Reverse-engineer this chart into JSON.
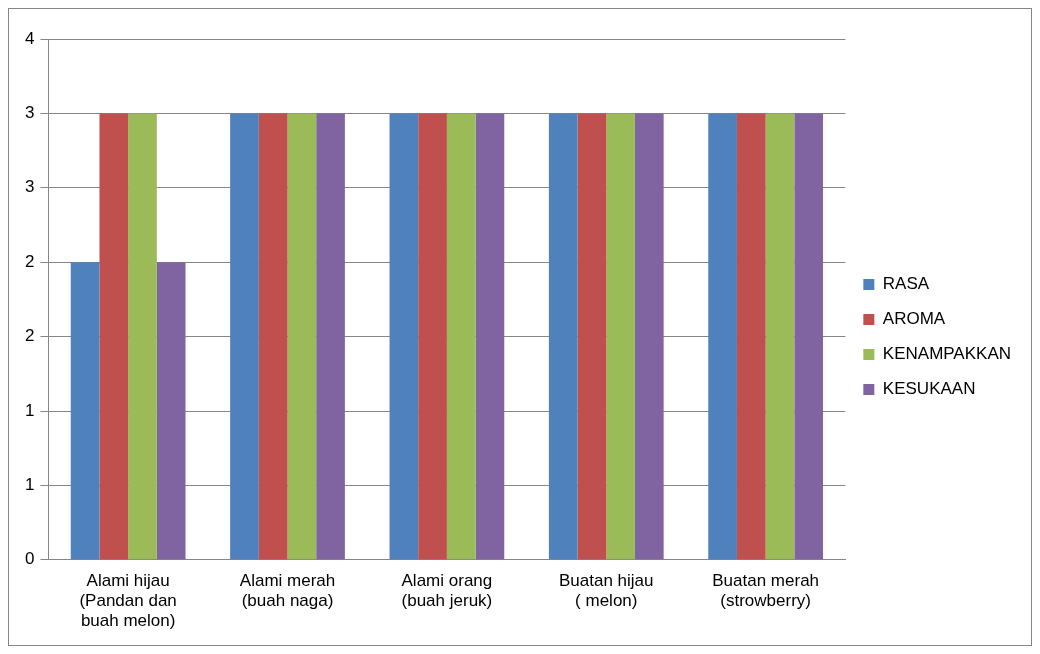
{
  "chart_data": {
    "type": "bar",
    "categories": [
      "Alami hijau (Pandan dan buah melon)",
      "Alami merah (buah naga)",
      "Alami orang (buah jeruk)",
      "Buatan hijau ( melon)",
      "Buatan merah (strowberry)"
    ],
    "series": [
      {
        "name": "RASA",
        "color": "#4f81bd",
        "values": [
          2,
          3,
          3,
          3,
          3
        ]
      },
      {
        "name": "AROMA",
        "color": "#c0504d",
        "values": [
          3,
          3,
          3,
          3,
          3
        ]
      },
      {
        "name": "KENAMPAKKAN",
        "color": "#9bbb59",
        "values": [
          3,
          3,
          3,
          3,
          3
        ]
      },
      {
        "name": "KESUKAAN",
        "color": "#8064a2",
        "values": [
          2,
          3,
          3,
          3,
          3
        ]
      }
    ],
    "ylim": [
      0,
      3.5
    ],
    "yticks": [
      0,
      {
        "value": 0.5,
        "label": "1"
      },
      1,
      {
        "value": 1.5,
        "label": "2"
      },
      2,
      {
        "value": 2.5,
        "label": "3"
      },
      3,
      {
        "value": 3.5,
        "label": "4"
      }
    ],
    "grid": "y",
    "legend": "right"
  }
}
